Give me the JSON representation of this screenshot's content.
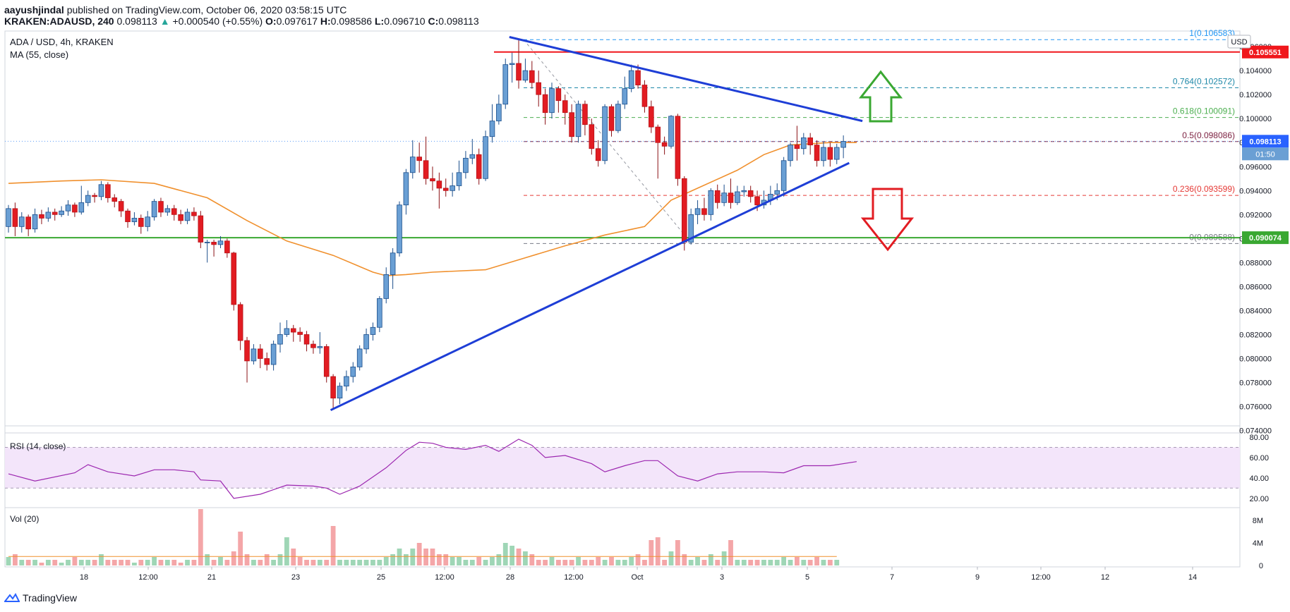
{
  "header": {
    "author": "aayushjindal",
    "published_text": "published on TradingView.com, October 06, 2020 03:58:15 UTC",
    "symbol": "KRAKEN:ADAUSD, 240",
    "last": "0.098113",
    "change_arrow": "▲",
    "change": "+0.000540 (+0.55%)",
    "o_label": "O:",
    "o": "0.097617",
    "h_label": "H:",
    "h": "0.098586",
    "l_label": "L:",
    "l": "0.096710",
    "c_label": "C:",
    "c": "0.098113"
  },
  "legend": {
    "pair": "ADA / USD, 4h, KRAKEN",
    "ma": "MA (55, close)",
    "rsi": "RSI (14, close)",
    "vol": "Vol (20)"
  },
  "currency_badge": "USD",
  "footer": {
    "brand": "TradingView"
  },
  "colors": {
    "up": "#6a9fd4",
    "up_border": "#2962ff",
    "down": "#e21c22",
    "ma": "#f0902d",
    "trend": "#1e3ed6",
    "support": "#3aa832",
    "resistance": "#f0171c"
  },
  "chart_data": {
    "type": "candlestick",
    "title": "ADA / USD, 4h, KRAKEN",
    "y_axis": {
      "ticks": [
        "0.106000",
        "0.104000",
        "0.102000",
        "0.100000",
        "0.098000",
        "0.096000",
        "0.094000",
        "0.092000",
        "0.090000",
        "0.088000",
        "0.086000",
        "0.084000",
        "0.082000",
        "0.080000",
        "0.078000",
        "0.076000",
        "0.074000"
      ],
      "ylim": [
        0.0738,
        0.1073
      ]
    },
    "x_axis": {
      "ticks": [
        "18",
        "12:00",
        "21",
        "23",
        "25",
        "12:00",
        "28",
        "12:00",
        "Oct",
        "3",
        "5",
        "7",
        "9",
        "12:00",
        "12",
        "14"
      ]
    },
    "price_labels": {
      "current": "0.098113",
      "countdown": "01:50",
      "resistance": "0.105551",
      "support": "0.090074"
    },
    "fibonacci": [
      {
        "label": "1(0.106583)",
        "value": 0.106583,
        "color": "#2196f3"
      },
      {
        "label": "0.764(0.102572)",
        "value": 0.102572,
        "color": "#1e88a8"
      },
      {
        "label": "0.618(0.100091)",
        "value": 0.100091,
        "color": "#4caf50"
      },
      {
        "label": "0.5(0.098086)",
        "value": 0.098086,
        "color": "#7b1f3f"
      },
      {
        "label": "0.236(0.093599)",
        "value": 0.093599,
        "color": "#e53935"
      },
      {
        "label": "0(0.089588)",
        "value": 0.089588,
        "color": "#787b86"
      }
    ],
    "levels": {
      "resistance": 0.105551,
      "support": 0.090074
    },
    "trendlines": [
      {
        "name": "lower",
        "x1": 14.6,
        "y1": 0.0757,
        "x2": 38.1,
        "y2": 0.0963
      },
      {
        "name": "upper",
        "x1": 22.7,
        "y1": 0.1068,
        "x2": 38.7,
        "y2": 0.0998
      }
    ],
    "candles": [
      [
        0.091,
        0.0925,
        0.0905,
        0.0928
      ],
      [
        0.0925,
        0.091,
        0.0902,
        0.093
      ],
      [
        0.091,
        0.0918,
        0.0905,
        0.0922
      ],
      [
        0.0918,
        0.0908,
        0.0902,
        0.092
      ],
      [
        0.0908,
        0.092,
        0.0905,
        0.0925
      ],
      [
        0.092,
        0.0917,
        0.0912,
        0.0924
      ],
      [
        0.0917,
        0.0922,
        0.0914,
        0.0926
      ],
      [
        0.0922,
        0.092,
        0.0915,
        0.0925
      ],
      [
        0.092,
        0.0923,
        0.0918,
        0.0927
      ],
      [
        0.0923,
        0.0928,
        0.0919,
        0.0932
      ],
      [
        0.0928,
        0.0922,
        0.0918,
        0.093
      ],
      [
        0.0922,
        0.093,
        0.092,
        0.0944
      ],
      [
        0.093,
        0.0936,
        0.0927,
        0.094
      ],
      [
        0.0936,
        0.0935,
        0.093,
        0.0938
      ],
      [
        0.0935,
        0.0945,
        0.0932,
        0.0948
      ],
      [
        0.0945,
        0.0934,
        0.093,
        0.0947
      ],
      [
        0.0934,
        0.0931,
        0.0926,
        0.0937
      ],
      [
        0.0931,
        0.0923,
        0.0918,
        0.0933
      ],
      [
        0.0923,
        0.0914,
        0.0909,
        0.0925
      ],
      [
        0.0914,
        0.0917,
        0.0911,
        0.0922
      ],
      [
        0.0917,
        0.091,
        0.0904,
        0.092
      ],
      [
        0.091,
        0.0918,
        0.0906,
        0.0923
      ],
      [
        0.0918,
        0.0931,
        0.0915,
        0.0933
      ],
      [
        0.0931,
        0.0922,
        0.0918,
        0.0934
      ],
      [
        0.0922,
        0.0925,
        0.0919,
        0.0928
      ],
      [
        0.0925,
        0.092,
        0.0915,
        0.0928
      ],
      [
        0.092,
        0.0915,
        0.0912,
        0.0924
      ],
      [
        0.0915,
        0.0922,
        0.0912,
        0.0925
      ],
      [
        0.0922,
        0.0919,
        0.0915,
        0.0926
      ],
      [
        0.0919,
        0.0897,
        0.0892,
        0.0923
      ],
      [
        0.0897,
        0.0897,
        0.088,
        0.0899
      ],
      [
        0.0897,
        0.0895,
        0.0885,
        0.0899
      ],
      [
        0.0895,
        0.0898,
        0.0892,
        0.0902
      ],
      [
        0.0898,
        0.0888,
        0.0884,
        0.09
      ],
      [
        0.0888,
        0.0845,
        0.084,
        0.0889
      ],
      [
        0.0845,
        0.0815,
        0.0807,
        0.0847
      ],
      [
        0.0815,
        0.0798,
        0.078,
        0.0818
      ],
      [
        0.0798,
        0.0808,
        0.0795,
        0.0812
      ],
      [
        0.0808,
        0.08,
        0.0792,
        0.0812
      ],
      [
        0.08,
        0.0795,
        0.079,
        0.0805
      ],
      [
        0.0795,
        0.0812,
        0.079,
        0.0815
      ],
      [
        0.0812,
        0.082,
        0.0805,
        0.083
      ],
      [
        0.082,
        0.0825,
        0.0818,
        0.0832
      ],
      [
        0.0825,
        0.0822,
        0.0814,
        0.0828
      ],
      [
        0.0822,
        0.082,
        0.0814,
        0.0826
      ],
      [
        0.082,
        0.0812,
        0.0806,
        0.0823
      ],
      [
        0.0812,
        0.0809,
        0.0804,
        0.0815
      ],
      [
        0.0809,
        0.081,
        0.0804,
        0.0822
      ],
      [
        0.081,
        0.0785,
        0.078,
        0.0812
      ],
      [
        0.0785,
        0.0767,
        0.0758,
        0.0787
      ],
      [
        0.0767,
        0.0777,
        0.0762,
        0.078
      ],
      [
        0.0777,
        0.0785,
        0.0773,
        0.079
      ],
      [
        0.0785,
        0.0793,
        0.078,
        0.0797
      ],
      [
        0.0793,
        0.0808,
        0.079,
        0.0811
      ],
      [
        0.0808,
        0.082,
        0.0804,
        0.0825
      ],
      [
        0.082,
        0.0826,
        0.0815,
        0.083
      ],
      [
        0.0826,
        0.085,
        0.0822,
        0.0852
      ],
      [
        0.085,
        0.087,
        0.0846,
        0.0876
      ],
      [
        0.087,
        0.0888,
        0.0858,
        0.0892
      ],
      [
        0.0888,
        0.0928,
        0.0885,
        0.0931
      ],
      [
        0.0928,
        0.0955,
        0.092,
        0.0958
      ],
      [
        0.0955,
        0.0968,
        0.095,
        0.0982
      ],
      [
        0.0968,
        0.0965,
        0.0955,
        0.098
      ],
      [
        0.0965,
        0.095,
        0.0945,
        0.0985
      ],
      [
        0.095,
        0.0948,
        0.094,
        0.096
      ],
      [
        0.0948,
        0.0942,
        0.0925,
        0.0955
      ],
      [
        0.0942,
        0.094,
        0.0935,
        0.095
      ],
      [
        0.094,
        0.0944,
        0.0935,
        0.0955
      ],
      [
        0.0944,
        0.0955,
        0.094,
        0.0965
      ],
      [
        0.0955,
        0.0967,
        0.095,
        0.0973
      ],
      [
        0.0967,
        0.097,
        0.0962,
        0.0983
      ],
      [
        0.097,
        0.095,
        0.0945,
        0.0975
      ],
      [
        0.095,
        0.0985,
        0.0948,
        0.099
      ],
      [
        0.0985,
        0.0998,
        0.098,
        0.1012
      ],
      [
        0.0998,
        0.1012,
        0.0995,
        0.102
      ],
      [
        0.1012,
        0.1045,
        0.1008,
        0.105
      ],
      [
        0.1045,
        0.1046,
        0.103,
        0.1055
      ],
      [
        0.1046,
        0.1032,
        0.1025,
        0.1066
      ],
      [
        0.1032,
        0.104,
        0.103,
        0.105
      ],
      [
        0.104,
        0.103,
        0.1025,
        0.1048
      ],
      [
        0.103,
        0.102,
        0.101,
        0.104
      ],
      [
        0.102,
        0.1005,
        0.0995,
        0.1025
      ],
      [
        0.1005,
        0.1025,
        0.1,
        0.103
      ],
      [
        0.1025,
        0.1015,
        0.1005,
        0.1027
      ],
      [
        0.1015,
        0.1005,
        0.0995,
        0.102
      ],
      [
        0.1005,
        0.0985,
        0.098,
        0.1012
      ],
      [
        0.0985,
        0.1012,
        0.098,
        0.1015
      ],
      [
        0.1012,
        0.0995,
        0.0986,
        0.1015
      ],
      [
        0.0995,
        0.0975,
        0.097,
        0.1
      ],
      [
        0.0975,
        0.0965,
        0.096,
        0.0982
      ],
      [
        0.0965,
        0.101,
        0.0962,
        0.1012
      ],
      [
        0.101,
        0.099,
        0.0985,
        0.1012
      ],
      [
        0.099,
        0.1012,
        0.0988,
        0.1015
      ],
      [
        0.1012,
        0.1025,
        0.1008,
        0.1035
      ],
      [
        0.1025,
        0.104,
        0.1022,
        0.1045
      ],
      [
        0.104,
        0.1028,
        0.1025,
        0.1045
      ],
      [
        0.1028,
        0.101,
        0.1005,
        0.1032
      ],
      [
        0.101,
        0.0993,
        0.0988,
        0.1015
      ],
      [
        0.0993,
        0.098,
        0.095,
        0.0995
      ],
      [
        0.098,
        0.0977,
        0.097,
        0.0985
      ],
      [
        0.0977,
        0.1002,
        0.0975,
        0.1003
      ],
      [
        0.1002,
        0.095,
        0.0944,
        0.1004
      ],
      [
        0.095,
        0.0897,
        0.089,
        0.0952
      ],
      [
        0.0897,
        0.092,
        0.0895,
        0.0925
      ],
      [
        0.092,
        0.0925,
        0.0912,
        0.0932
      ],
      [
        0.0925,
        0.092,
        0.0915,
        0.0934
      ],
      [
        0.092,
        0.094,
        0.0915,
        0.0942
      ],
      [
        0.094,
        0.093,
        0.0925,
        0.0945
      ],
      [
        0.093,
        0.0938,
        0.0927,
        0.0945
      ],
      [
        0.0938,
        0.093,
        0.0925,
        0.095
      ],
      [
        0.093,
        0.0939,
        0.0928,
        0.0944
      ],
      [
        0.0939,
        0.094,
        0.0935,
        0.0944
      ],
      [
        0.094,
        0.0935,
        0.093,
        0.0944
      ],
      [
        0.0935,
        0.0928,
        0.0923,
        0.094
      ],
      [
        0.0928,
        0.0932,
        0.0925,
        0.094
      ],
      [
        0.0932,
        0.0937,
        0.0928,
        0.0944
      ],
      [
        0.0937,
        0.094,
        0.0932,
        0.0946
      ],
      [
        0.094,
        0.0965,
        0.0935,
        0.0968
      ],
      [
        0.0965,
        0.0978,
        0.096,
        0.098
      ],
      [
        0.0978,
        0.0975,
        0.0965,
        0.0994
      ],
      [
        0.0975,
        0.0984,
        0.097,
        0.0988
      ],
      [
        0.0984,
        0.0978,
        0.097,
        0.0988
      ],
      [
        0.0978,
        0.0965,
        0.096,
        0.0982
      ],
      [
        0.0965,
        0.0976,
        0.096,
        0.0981
      ],
      [
        0.0976,
        0.0966,
        0.096,
        0.098
      ],
      [
        0.0966,
        0.0976,
        0.0962,
        0.0979
      ],
      [
        0.0976,
        0.0981,
        0.0967,
        0.0986
      ]
    ],
    "ma55": [
      [
        0,
        0.0946
      ],
      [
        8,
        0.0948
      ],
      [
        14,
        0.0949
      ],
      [
        22,
        0.0946
      ],
      [
        30,
        0.0934
      ],
      [
        36,
        0.0915
      ],
      [
        42,
        0.0898
      ],
      [
        49,
        0.0886
      ],
      [
        55,
        0.0872
      ],
      [
        57,
        0.0869
      ],
      [
        60,
        0.087
      ],
      [
        64,
        0.0872
      ],
      [
        72,
        0.0874
      ],
      [
        78,
        0.0884
      ],
      [
        84,
        0.0894
      ],
      [
        90,
        0.0903
      ],
      [
        96,
        0.091
      ],
      [
        100,
        0.0932
      ],
      [
        104,
        0.0942
      ],
      [
        110,
        0.0957
      ],
      [
        114,
        0.097
      ],
      [
        118,
        0.0978
      ],
      [
        124,
        0.098
      ],
      [
        128,
        0.098
      ]
    ],
    "rsi": {
      "ticks": [
        "80.00",
        "60.00",
        "40.00",
        "20.00"
      ],
      "band": [
        30,
        70
      ],
      "range": [
        15,
        80
      ],
      "values": [
        [
          0,
          44
        ],
        [
          4,
          37
        ],
        [
          10,
          45
        ],
        [
          12,
          53
        ],
        [
          15,
          46
        ],
        [
          19,
          42
        ],
        [
          22,
          48
        ],
        [
          25,
          48
        ],
        [
          28,
          46
        ],
        [
          29,
          38
        ],
        [
          32,
          37
        ],
        [
          34,
          20
        ],
        [
          38,
          24
        ],
        [
          42,
          33
        ],
        [
          46,
          32
        ],
        [
          48,
          30
        ],
        [
          50,
          24
        ],
        [
          53,
          32
        ],
        [
          57,
          50
        ],
        [
          60,
          67
        ],
        [
          62,
          75
        ],
        [
          64,
          74
        ],
        [
          66,
          70
        ],
        [
          69,
          68
        ],
        [
          72,
          72
        ],
        [
          74,
          66
        ],
        [
          77,
          78
        ],
        [
          79,
          72
        ],
        [
          81,
          60
        ],
        [
          84,
          62
        ],
        [
          88,
          54
        ],
        [
          90,
          46
        ],
        [
          93,
          52
        ],
        [
          96,
          57
        ],
        [
          98,
          57
        ],
        [
          101,
          42
        ],
        [
          104,
          37
        ],
        [
          107,
          44
        ],
        [
          110,
          46
        ],
        [
          114,
          46
        ],
        [
          117,
          45
        ],
        [
          120,
          52
        ],
        [
          124,
          52
        ],
        [
          128,
          56
        ]
      ]
    },
    "volume": {
      "ticks": [
        "8M",
        "4M",
        "0"
      ],
      "max": 10,
      "values": [
        1.5,
        2,
        1,
        1,
        1,
        0.5,
        1,
        1,
        0.5,
        1,
        1.5,
        1,
        1,
        1,
        2,
        1,
        1,
        1,
        1,
        0.5,
        1,
        1,
        1.5,
        1,
        1,
        1,
        0.5,
        1,
        1,
        10,
        2,
        1,
        1.5,
        1,
        2.5,
        6,
        2,
        1,
        1,
        2,
        1,
        2,
        5,
        3,
        1.5,
        1,
        1,
        1,
        1,
        7,
        1,
        1,
        1,
        1,
        1,
        1,
        1,
        1.5,
        2,
        3,
        2,
        3,
        4,
        3,
        3,
        2,
        2,
        1.5,
        1.5,
        1,
        1,
        1.5,
        1,
        1.5,
        2,
        4,
        3.5,
        3,
        2.5,
        2,
        1,
        1,
        1.5,
        1,
        1,
        1,
        1.5,
        1,
        1,
        1.5,
        1,
        1.5,
        1,
        1,
        1.5,
        2,
        1,
        4.5,
        5,
        1,
        2.5,
        4.5,
        2,
        1,
        1.5,
        1,
        2,
        1,
        2.5,
        4.5,
        1,
        1,
        1,
        1,
        1,
        1,
        1,
        1.5,
        1,
        1.5,
        1,
        1,
        1.5,
        1,
        1,
        1
      ],
      "ma20": 1.6
    }
  }
}
